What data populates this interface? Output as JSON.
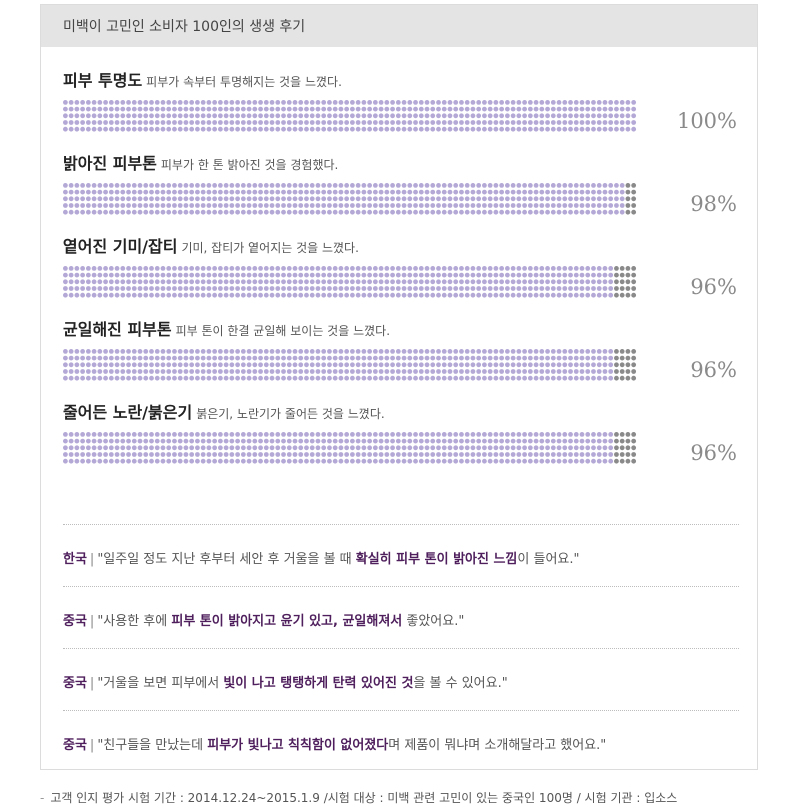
{
  "header": {
    "title": "미백이 고민인 소비자 100인의 생생 후기"
  },
  "colors": {
    "filled": "#b4a9d6",
    "empty": "#8a8a8a",
    "accent": "#4e1f5c"
  },
  "chart_data": {
    "type": "bar",
    "categories": [
      "피부 투명도",
      "밝아진 피부톤",
      "옅어진 기미/잡티",
      "균일해진 피부톤",
      "줄어든 노란/붉은기"
    ],
    "descriptions": [
      "피부가 속부터 투명해지는 것을 느꼈다.",
      "피부가 한 톤 밝아진 것을 경험했다.",
      "기미, 잡티가 옅어지는 것을 느꼈다.",
      "피부 톤이 한결 균일해 보이는 것을 느꼈다.",
      "붉은기, 노란기가 줄어든 것을 느꼈다."
    ],
    "values": [
      100,
      98,
      96,
      96,
      96
    ],
    "value_labels": [
      "100%",
      "98%",
      "96%",
      "96%",
      "96%"
    ],
    "ylim": [
      0,
      100
    ]
  },
  "reviews": [
    {
      "country": "한국",
      "sep": "|",
      "before": "\"일주일 정도 지난 후부터 세안 후 거울을 볼 때 ",
      "highlight": "확실히 피부 톤이 밝아진 느낌",
      "after": "이 들어요.\""
    },
    {
      "country": "중국",
      "sep": "|",
      "before": "\"사용한 후에 ",
      "highlight": "피부 톤이 밝아지고 윤기 있고, 균일해져서",
      "after": " 좋았어요.\""
    },
    {
      "country": "중국",
      "sep": "|",
      "before": "\"거울을 보면 피부에서 ",
      "highlight": "빛이 나고 탱탱하게 탄력 있어진 것",
      "after": "을 볼 수 있어요.\""
    },
    {
      "country": "중국",
      "sep": "|",
      "before": "\"친구들을 만났는데 ",
      "highlight": "피부가 빛나고 칙칙함이 없어졌다",
      "after": "며 제품이 뭐냐며 소개해달라고 했어요.\""
    }
  ],
  "footer": {
    "text": "고객 인지 평가 시험 기간 : 2014.12.24~2015.1.9 /시험 대상 : 미백 관련 고민이 있는 중국인 100명 / 시험 기관 : 입소스"
  }
}
